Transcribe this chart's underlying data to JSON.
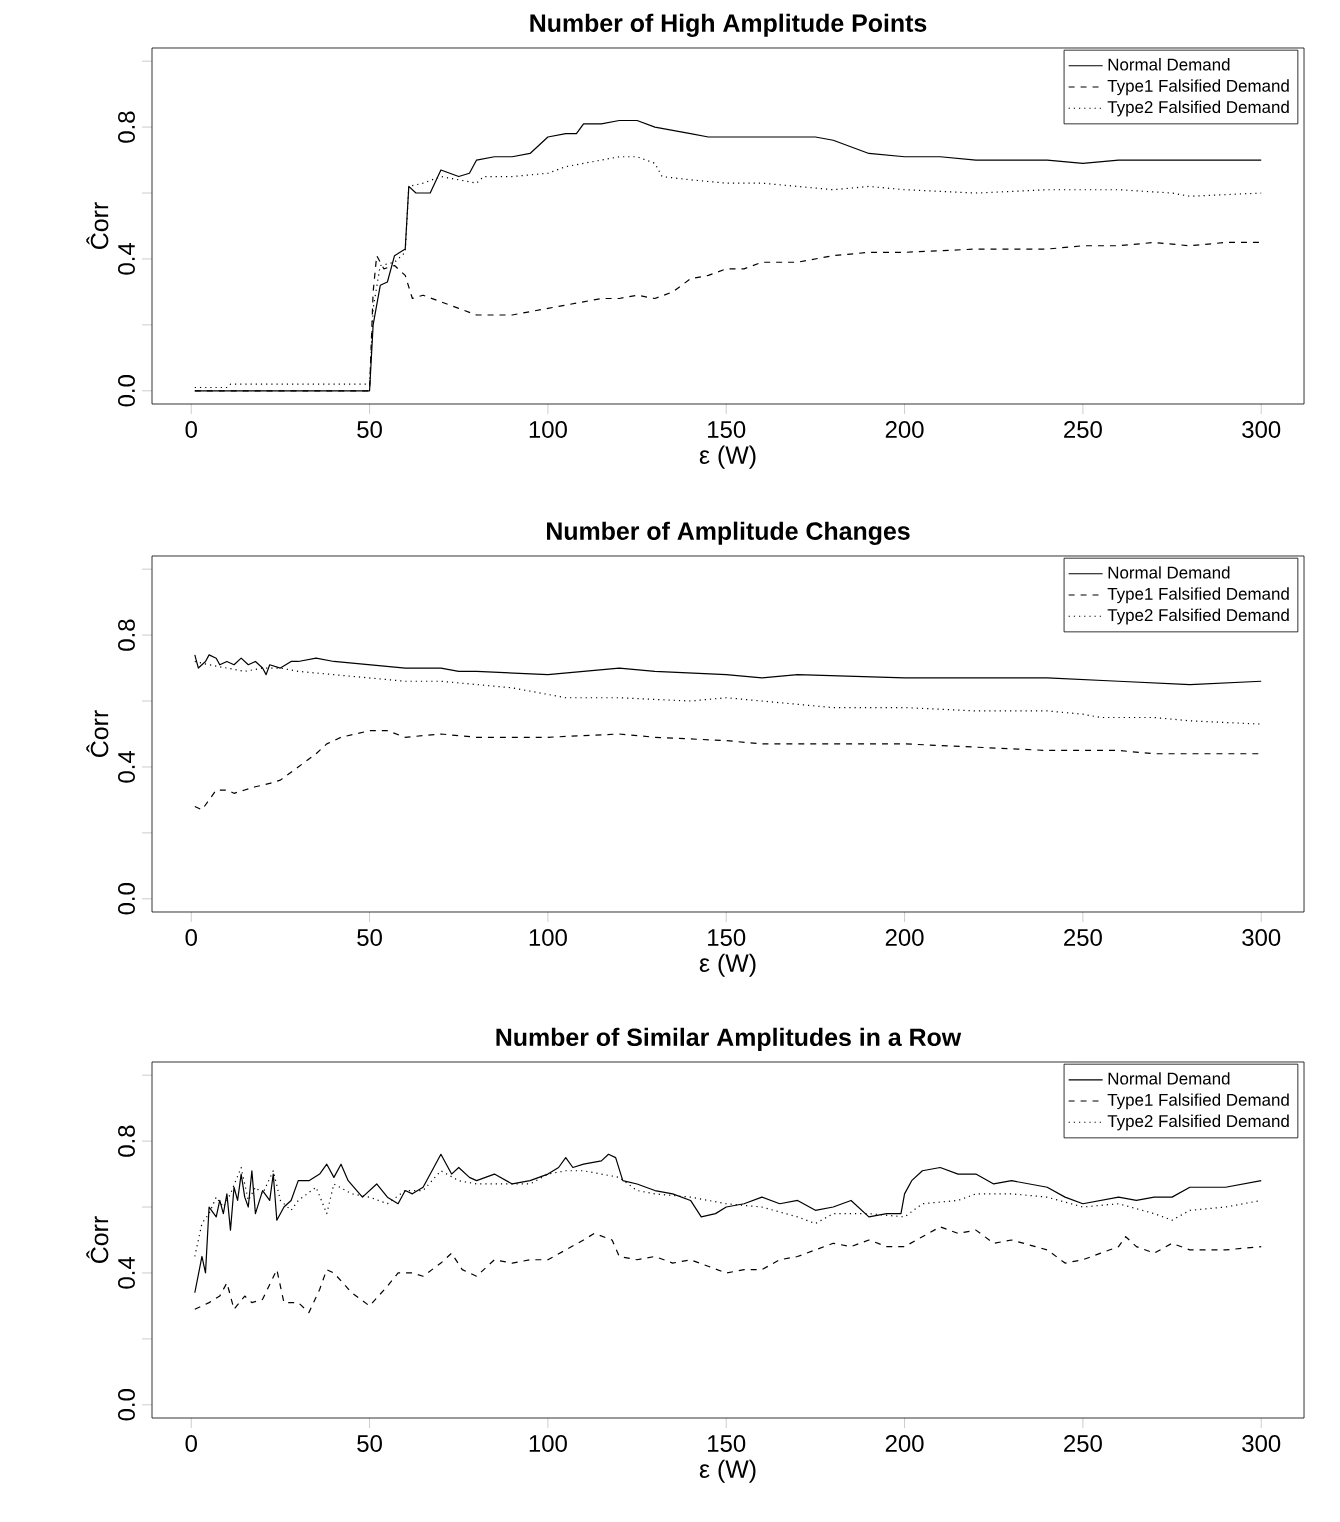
{
  "chart_data": [
    {
      "type": "line",
      "title": "Number of High Amplitude Points",
      "xlabel": "ε (W)",
      "ylabel": "Ĉorr",
      "xlim": [
        -11,
        312
      ],
      "ylim": [
        -0.04,
        1.04
      ],
      "xticks": [
        0,
        50,
        100,
        150,
        200,
        250,
        300
      ],
      "yticks": [
        {
          "value": 0,
          "label": "0.0"
        },
        {
          "value": 0.2,
          "label": null
        },
        {
          "value": 0.4,
          "label": "0.4"
        },
        {
          "value": 0.6,
          "label": null
        },
        {
          "value": 0.8,
          "label": "0.8"
        },
        {
          "value": 1.0,
          "label": null
        }
      ],
      "legend": "top right",
      "marker": "none",
      "series": [
        {
          "name": "Normal Demand",
          "color": "#000000",
          "line_style": "solid",
          "x": [
            1,
            50,
            51,
            53,
            55,
            57,
            60,
            61,
            63,
            67,
            70,
            75,
            78,
            80,
            85,
            90,
            95,
            100,
            105,
            108,
            110,
            115,
            120,
            125,
            130,
            135,
            140,
            145,
            150,
            160,
            170,
            175,
            180,
            190,
            200,
            210,
            220,
            230,
            240,
            250,
            260,
            270,
            280,
            290,
            300
          ],
          "values": [
            0.0,
            0.0,
            0.2,
            0.32,
            0.33,
            0.41,
            0.43,
            0.62,
            0.6,
            0.6,
            0.67,
            0.65,
            0.66,
            0.7,
            0.71,
            0.71,
            0.72,
            0.77,
            0.78,
            0.78,
            0.81,
            0.81,
            0.82,
            0.82,
            0.8,
            0.79,
            0.78,
            0.77,
            0.77,
            0.77,
            0.77,
            0.77,
            0.76,
            0.72,
            0.71,
            0.71,
            0.7,
            0.7,
            0.7,
            0.69,
            0.7,
            0.7,
            0.7,
            0.7,
            0.7
          ]
        },
        {
          "name": "Type1 Falsified Demand",
          "color": "#000000",
          "line_style": "dashed",
          "x": [
            1,
            50,
            51,
            52,
            54,
            57,
            60,
            62,
            65,
            70,
            75,
            80,
            85,
            90,
            95,
            100,
            105,
            110,
            115,
            120,
            125,
            130,
            135,
            140,
            145,
            150,
            155,
            160,
            170,
            180,
            190,
            200,
            220,
            240,
            250,
            260,
            270,
            280,
            290,
            300
          ],
          "values": [
            0.0,
            0.0,
            0.3,
            0.41,
            0.37,
            0.38,
            0.35,
            0.28,
            0.29,
            0.27,
            0.25,
            0.23,
            0.23,
            0.23,
            0.24,
            0.25,
            0.26,
            0.27,
            0.28,
            0.28,
            0.29,
            0.28,
            0.3,
            0.34,
            0.35,
            0.37,
            0.37,
            0.39,
            0.39,
            0.41,
            0.42,
            0.42,
            0.43,
            0.43,
            0.44,
            0.44,
            0.45,
            0.44,
            0.45,
            0.45
          ]
        },
        {
          "name": "Type2 Falsified Demand",
          "color": "#000000",
          "line_style": "dotted",
          "x": [
            1,
            10,
            11,
            50,
            51,
            53,
            57,
            60,
            61,
            65,
            70,
            75,
            80,
            82,
            90,
            100,
            105,
            110,
            115,
            120,
            125,
            130,
            132,
            140,
            150,
            160,
            170,
            180,
            190,
            200,
            220,
            240,
            260,
            275,
            280,
            300
          ],
          "values": [
            0.01,
            0.01,
            0.02,
            0.02,
            0.25,
            0.38,
            0.39,
            0.42,
            0.62,
            0.63,
            0.65,
            0.64,
            0.63,
            0.65,
            0.65,
            0.66,
            0.68,
            0.69,
            0.7,
            0.71,
            0.71,
            0.69,
            0.65,
            0.64,
            0.63,
            0.63,
            0.62,
            0.61,
            0.62,
            0.61,
            0.6,
            0.61,
            0.61,
            0.6,
            0.59,
            0.6
          ]
        }
      ]
    },
    {
      "type": "line",
      "title": "Number of Amplitude Changes",
      "xlabel": "ε (W)",
      "ylabel": "Ĉorr",
      "xlim": [
        -11,
        312
      ],
      "ylim": [
        -0.04,
        1.04
      ],
      "xticks": [
        0,
        50,
        100,
        150,
        200,
        250,
        300
      ],
      "yticks": [
        {
          "value": 0,
          "label": "0.0"
        },
        {
          "value": 0.2,
          "label": null
        },
        {
          "value": 0.4,
          "label": "0.4"
        },
        {
          "value": 0.6,
          "label": null
        },
        {
          "value": 0.8,
          "label": "0.8"
        },
        {
          "value": 1.0,
          "label": null
        }
      ],
      "legend": "top right",
      "marker": "none",
      "series": [
        {
          "name": "Normal Demand",
          "color": "#000000",
          "line_style": "solid",
          "x": [
            1,
            2,
            4,
            5,
            7,
            8,
            10,
            12,
            14,
            16,
            18,
            20,
            21,
            22,
            25,
            28,
            30,
            35,
            40,
            50,
            60,
            70,
            75,
            80,
            100,
            110,
            120,
            130,
            150,
            160,
            170,
            200,
            220,
            240,
            260,
            280,
            300
          ],
          "values": [
            0.74,
            0.7,
            0.72,
            0.74,
            0.73,
            0.71,
            0.72,
            0.71,
            0.73,
            0.71,
            0.72,
            0.7,
            0.68,
            0.71,
            0.7,
            0.72,
            0.72,
            0.73,
            0.72,
            0.71,
            0.7,
            0.7,
            0.69,
            0.69,
            0.68,
            0.69,
            0.7,
            0.69,
            0.68,
            0.67,
            0.68,
            0.67,
            0.67,
            0.67,
            0.66,
            0.65,
            0.66
          ]
        },
        {
          "name": "Type1 Falsified Demand",
          "color": "#000000",
          "line_style": "dashed",
          "x": [
            1,
            3,
            5,
            7,
            10,
            12,
            15,
            18,
            22,
            25,
            30,
            35,
            38,
            42,
            50,
            55,
            60,
            70,
            80,
            90,
            100,
            120,
            130,
            150,
            160,
            180,
            200,
            220,
            240,
            260,
            270,
            290,
            300
          ],
          "values": [
            0.28,
            0.27,
            0.3,
            0.33,
            0.33,
            0.32,
            0.33,
            0.34,
            0.35,
            0.36,
            0.4,
            0.44,
            0.47,
            0.49,
            0.51,
            0.51,
            0.49,
            0.5,
            0.49,
            0.49,
            0.49,
            0.5,
            0.49,
            0.48,
            0.47,
            0.47,
            0.47,
            0.46,
            0.45,
            0.45,
            0.44,
            0.44,
            0.44
          ]
        },
        {
          "name": "Type2 Falsified Demand",
          "color": "#000000",
          "line_style": "dotted",
          "x": [
            1,
            5,
            10,
            15,
            20,
            25,
            30,
            40,
            50,
            60,
            70,
            80,
            90,
            95,
            100,
            105,
            120,
            140,
            150,
            170,
            180,
            200,
            220,
            240,
            250,
            255,
            270,
            280,
            300
          ],
          "values": [
            0.72,
            0.71,
            0.7,
            0.69,
            0.7,
            0.7,
            0.69,
            0.68,
            0.67,
            0.66,
            0.66,
            0.65,
            0.64,
            0.63,
            0.62,
            0.61,
            0.61,
            0.6,
            0.61,
            0.59,
            0.58,
            0.58,
            0.57,
            0.57,
            0.56,
            0.55,
            0.55,
            0.54,
            0.53
          ]
        }
      ]
    },
    {
      "type": "line",
      "title": "Number of Similar Amplitudes in a Row",
      "xlabel": "ε (W)",
      "ylabel": "Ĉorr",
      "xlim": [
        -11,
        312
      ],
      "ylim": [
        -0.04,
        1.04
      ],
      "xticks": [
        0,
        50,
        100,
        150,
        200,
        250,
        300
      ],
      "yticks": [
        {
          "value": 0,
          "label": "0.0"
        },
        {
          "value": 0.2,
          "label": null
        },
        {
          "value": 0.4,
          "label": "0.4"
        },
        {
          "value": 0.6,
          "label": null
        },
        {
          "value": 0.8,
          "label": "0.8"
        },
        {
          "value": 1.0,
          "label": null
        }
      ],
      "legend": "top right",
      "marker": "none",
      "series": [
        {
          "name": "Normal Demand",
          "color": "#000000",
          "line_style": "solid",
          "x": [
            1,
            3,
            4,
            5,
            7,
            8,
            9,
            10,
            11,
            12,
            13,
            14,
            15,
            16,
            17,
            18,
            20,
            22,
            23,
            24,
            26,
            28,
            30,
            33,
            36,
            38,
            40,
            42,
            44,
            48,
            52,
            55,
            58,
            60,
            62,
            65,
            68,
            70,
            73,
            75,
            78,
            80,
            85,
            90,
            95,
            100,
            103,
            105,
            107,
            110,
            115,
            117,
            119,
            121,
            125,
            130,
            135,
            140,
            143,
            147,
            150,
            155,
            160,
            165,
            170,
            175,
            180,
            185,
            190,
            195,
            199,
            200,
            202,
            205,
            210,
            215,
            220,
            225,
            230,
            240,
            245,
            250,
            260,
            265,
            270,
            275,
            280,
            290,
            300
          ],
          "values": [
            0.34,
            0.45,
            0.4,
            0.6,
            0.57,
            0.62,
            0.58,
            0.64,
            0.53,
            0.66,
            0.62,
            0.7,
            0.63,
            0.6,
            0.71,
            0.58,
            0.65,
            0.62,
            0.7,
            0.56,
            0.6,
            0.62,
            0.68,
            0.68,
            0.7,
            0.73,
            0.69,
            0.73,
            0.68,
            0.63,
            0.67,
            0.63,
            0.61,
            0.65,
            0.64,
            0.66,
            0.72,
            0.76,
            0.7,
            0.72,
            0.69,
            0.68,
            0.7,
            0.67,
            0.68,
            0.7,
            0.72,
            0.75,
            0.72,
            0.73,
            0.74,
            0.76,
            0.75,
            0.68,
            0.67,
            0.65,
            0.64,
            0.62,
            0.57,
            0.58,
            0.6,
            0.61,
            0.63,
            0.61,
            0.62,
            0.59,
            0.6,
            0.62,
            0.57,
            0.58,
            0.58,
            0.64,
            0.68,
            0.71,
            0.72,
            0.7,
            0.7,
            0.67,
            0.68,
            0.66,
            0.63,
            0.61,
            0.63,
            0.62,
            0.63,
            0.63,
            0.66,
            0.66,
            0.68
          ]
        },
        {
          "name": "Type1 Falsified Demand",
          "color": "#000000",
          "line_style": "dashed",
          "x": [
            1,
            5,
            8,
            10,
            12,
            15,
            17,
            20,
            24,
            26,
            30,
            33,
            36,
            38,
            40,
            45,
            50,
            55,
            58,
            62,
            65,
            70,
            73,
            76,
            80,
            85,
            90,
            95,
            100,
            105,
            110,
            113,
            118,
            120,
            125,
            130,
            135,
            140,
            145,
            150,
            155,
            160,
            165,
            170,
            175,
            180,
            185,
            190,
            195,
            200,
            205,
            210,
            215,
            220,
            225,
            230,
            240,
            245,
            250,
            255,
            260,
            262,
            265,
            270,
            275,
            280,
            290,
            300
          ],
          "values": [
            0.29,
            0.31,
            0.33,
            0.37,
            0.29,
            0.33,
            0.31,
            0.32,
            0.41,
            0.31,
            0.31,
            0.28,
            0.35,
            0.41,
            0.4,
            0.34,
            0.3,
            0.36,
            0.4,
            0.4,
            0.39,
            0.43,
            0.46,
            0.41,
            0.39,
            0.44,
            0.43,
            0.44,
            0.44,
            0.47,
            0.5,
            0.52,
            0.5,
            0.45,
            0.44,
            0.45,
            0.43,
            0.44,
            0.42,
            0.4,
            0.41,
            0.41,
            0.44,
            0.45,
            0.47,
            0.49,
            0.48,
            0.5,
            0.48,
            0.48,
            0.51,
            0.54,
            0.52,
            0.53,
            0.49,
            0.5,
            0.47,
            0.43,
            0.44,
            0.46,
            0.48,
            0.51,
            0.48,
            0.46,
            0.49,
            0.47,
            0.47,
            0.48
          ]
        },
        {
          "name": "Type2 Falsified Demand",
          "color": "#000000",
          "line_style": "dotted",
          "x": [
            1,
            3,
            5,
            7,
            9,
            11,
            14,
            16,
            18,
            20,
            23,
            25,
            28,
            30,
            35,
            38,
            40,
            45,
            50,
            55,
            60,
            65,
            70,
            75,
            80,
            85,
            90,
            95,
            100,
            105,
            110,
            115,
            120,
            125,
            130,
            140,
            150,
            160,
            170,
            175,
            180,
            190,
            200,
            205,
            215,
            220,
            230,
            240,
            250,
            260,
            270,
            275,
            280,
            290,
            300
          ],
          "values": [
            0.45,
            0.55,
            0.58,
            0.63,
            0.6,
            0.64,
            0.72,
            0.62,
            0.66,
            0.64,
            0.71,
            0.62,
            0.59,
            0.62,
            0.66,
            0.58,
            0.67,
            0.64,
            0.63,
            0.61,
            0.65,
            0.65,
            0.71,
            0.68,
            0.67,
            0.67,
            0.67,
            0.67,
            0.7,
            0.71,
            0.71,
            0.7,
            0.69,
            0.65,
            0.64,
            0.63,
            0.61,
            0.6,
            0.57,
            0.55,
            0.58,
            0.58,
            0.57,
            0.61,
            0.62,
            0.64,
            0.64,
            0.63,
            0.6,
            0.61,
            0.58,
            0.56,
            0.59,
            0.6,
            0.62
          ]
        }
      ]
    }
  ]
}
